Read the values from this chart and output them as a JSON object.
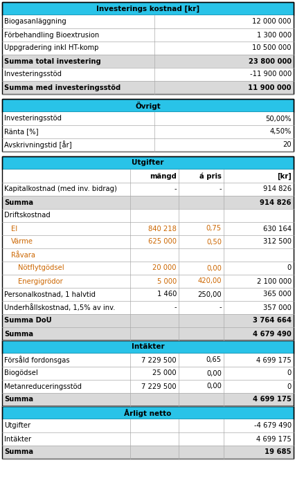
{
  "cyan": "#29C3E8",
  "orange": "#CC6600",
  "black": "#000000",
  "white": "#FFFFFF",
  "gray_bg": "#D9D9D9",
  "light_gray": "#F2F2F2",
  "table1_header": "Investerings kostnad [kr]",
  "table1_rows": [
    {
      "label": "Biogasanläggning",
      "value": "12 000 000",
      "bold": false
    },
    {
      "label": "Förbehandling Bioextrusion",
      "value": "1 300 000",
      "bold": false
    },
    {
      "label": "Uppgradering inkl HT-komp",
      "value": "10 500 000",
      "bold": false
    },
    {
      "label": "Summa total investering",
      "value": "23 800 000",
      "bold": true
    },
    {
      "label": "Investeringsstöd",
      "value": "-11 900 000",
      "bold": false
    },
    {
      "label": "Summa med investeringsstöd",
      "value": "11 900 000",
      "bold": true
    }
  ],
  "table2_header": "Övrigt",
  "table2_rows": [
    {
      "label": "Investeringsstöd",
      "value": "50,00%"
    },
    {
      "label": "Ränta [%]",
      "value": "4,50%"
    },
    {
      "label": "Avskrivningstid [år]",
      "value": "20"
    }
  ],
  "table3_header": "Utgifter",
  "table3_subheader": [
    "mängd",
    "á pris",
    "[kr]"
  ],
  "table3_rows": [
    {
      "label": "Kapitalkostnad (med inv. bidrag)",
      "mangd": "-",
      "apris": "-",
      "kr": "914 826",
      "bold": false,
      "color": "black",
      "indent": 0
    },
    {
      "label": "Summa",
      "mangd": "",
      "apris": "",
      "kr": "914 826",
      "bold": true,
      "color": "black",
      "indent": 0
    },
    {
      "label": "Driftskostnad",
      "mangd": "",
      "apris": "",
      "kr": "",
      "bold": false,
      "color": "black",
      "indent": 0
    },
    {
      "label": "El",
      "mangd": "840 218",
      "apris": "0,75",
      "kr": "630 164",
      "bold": false,
      "color": "orange",
      "indent": 1
    },
    {
      "label": "Värme",
      "mangd": "625 000",
      "apris": "0,50",
      "kr": "312 500",
      "bold": false,
      "color": "orange",
      "indent": 1
    },
    {
      "label": "Råvara",
      "mangd": "",
      "apris": "",
      "kr": "",
      "bold": false,
      "color": "orange",
      "indent": 1
    },
    {
      "label": "Nötflytgödsel",
      "mangd": "20 000",
      "apris": "0,00",
      "kr": "0",
      "bold": false,
      "color": "orange",
      "indent": 2
    },
    {
      "label": "Energigrödor",
      "mangd": "5 000",
      "apris": "420,00",
      "kr": "2 100 000",
      "bold": false,
      "color": "orange",
      "indent": 2
    },
    {
      "label": "Personalkostnad, 1 halvtid",
      "mangd": "1 460",
      "apris": "250,00",
      "kr": "365 000",
      "bold": false,
      "color": "black",
      "indent": 0
    },
    {
      "label": "Underhållskostnad, 1,5% av inv.",
      "mangd": "-",
      "apris": "-",
      "kr": "357 000",
      "bold": false,
      "color": "black",
      "indent": 0
    },
    {
      "label": "Summa DoU",
      "mangd": "",
      "apris": "",
      "kr": "3 764 664",
      "bold": true,
      "color": "black",
      "indent": 0
    },
    {
      "label": "Summa",
      "mangd": "",
      "apris": "",
      "kr": "4 679 490",
      "bold": true,
      "color": "black",
      "indent": 0
    }
  ],
  "table4_header": "Intäkter",
  "table4_rows": [
    {
      "label": "Försåld fordonsgas",
      "mangd": "7 229 500",
      "apris": "0,65",
      "kr": "4 699 175",
      "bold": false
    },
    {
      "label": "Biogödsel",
      "mangd": "25 000",
      "apris": "0,00",
      "kr": "0",
      "bold": false
    },
    {
      "label": "Metanreduceringsstöd",
      "mangd": "7 229 500",
      "apris": "0,00",
      "kr": "0",
      "bold": false
    },
    {
      "label": "Summa",
      "mangd": "",
      "apris": "",
      "kr": "4 699 175",
      "bold": true
    }
  ],
  "table5_header": "Årligt netto",
  "table5_rows": [
    {
      "label": "Utgifter",
      "kr": "-4 679 490",
      "bold": false
    },
    {
      "label": "Intäkter",
      "kr": "4 699 175",
      "bold": false
    },
    {
      "label": "Summa",
      "kr": "19 685",
      "bold": true
    }
  ],
  "figw": 4.27,
  "figh": 7.14,
  "dpi": 100
}
